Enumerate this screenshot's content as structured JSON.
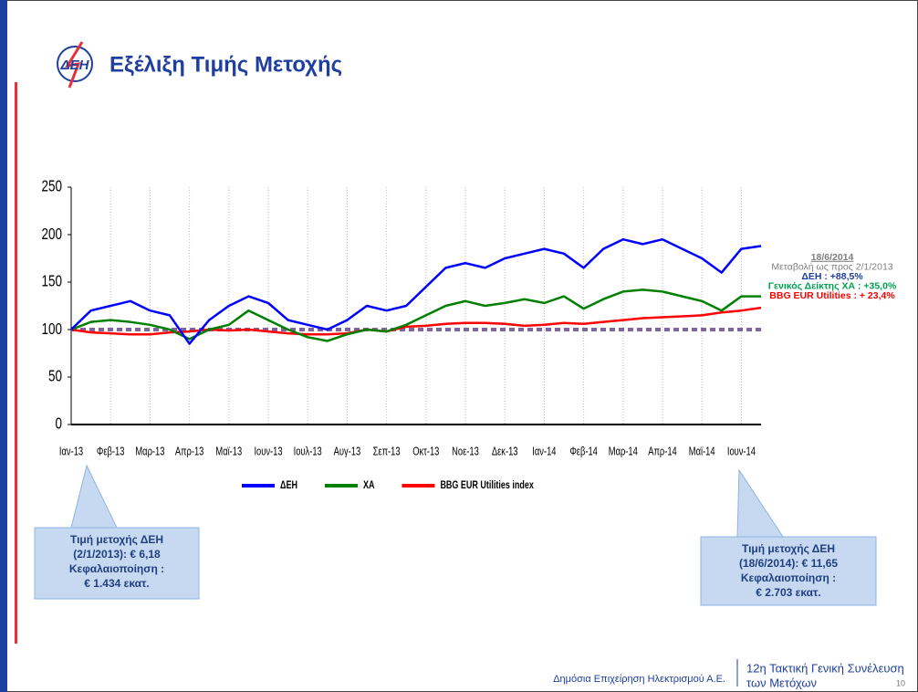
{
  "title": "Εξέλιξη Τιμής Μετοχής",
  "logo_text": "ΔΕΗ",
  "chart_data": {
    "type": "line",
    "categories": [
      "Ιαν-13",
      null,
      "Φεβ-13",
      null,
      "Μαρ-13",
      null,
      "Απρ-13",
      null,
      "Μαϊ-13",
      null,
      "Ιουν-13",
      null,
      "Ιουλ-13",
      null,
      "Αυγ-13",
      null,
      "Σεπ-13",
      null,
      "Οκτ-13",
      null,
      "Νοε-13",
      null,
      "Δεκ-13",
      null,
      "Ιαν-14",
      null,
      "Φεβ-14",
      null,
      "Μαρ-14",
      null,
      "Απρ-14",
      null,
      "Μαϊ-14",
      null,
      "Ιουν-14",
      null
    ],
    "series": [
      {
        "name": "ΔΕΗ",
        "color": "#0000ff",
        "values": [
          100,
          120,
          125,
          130,
          120,
          115,
          85,
          110,
          125,
          135,
          128,
          110,
          105,
          100,
          110,
          125,
          120,
          125,
          145,
          165,
          170,
          165,
          175,
          180,
          185,
          180,
          165,
          185,
          195,
          190,
          195,
          185,
          175,
          160,
          185,
          188
        ]
      },
      {
        "name": "ΧΑ",
        "color": "#008000",
        "values": [
          100,
          108,
          110,
          108,
          105,
          100,
          90,
          100,
          105,
          120,
          110,
          100,
          92,
          88,
          95,
          100,
          98,
          105,
          115,
          125,
          130,
          125,
          128,
          132,
          128,
          135,
          122,
          132,
          140,
          142,
          140,
          135,
          130,
          120,
          135,
          135
        ]
      },
      {
        "name": "BBG EUR Utilities index",
        "color": "#ff0000",
        "values": [
          100,
          97,
          96,
          95,
          95,
          97,
          98,
          100,
          99,
          100,
          98,
          96,
          95,
          95,
          96,
          100,
          98,
          103,
          104,
          106,
          107,
          107,
          106,
          104,
          105,
          107,
          106,
          108,
          110,
          112,
          113,
          114,
          115,
          118,
          120,
          123
        ]
      }
    ],
    "baseline": {
      "value": 100,
      "color": "#8064a2"
    },
    "ylim": [
      0,
      250
    ],
    "yticks": [
      0,
      50,
      100,
      150,
      200,
      250
    ],
    "grid": true,
    "annotations": [
      {
        "text": "18/6/2014",
        "color": "#7f7f7f"
      },
      {
        "text": "Μεταβολή ως προς 2/1/2013",
        "color": "#7f7f7f"
      },
      {
        "text": "ΔΕΗ : +88,5%",
        "color": "#1f3f9f"
      },
      {
        "text": "Γενικός Δείκτης ΧΑ : +35,0%",
        "color": "#00a050"
      },
      {
        "text": "BBG EUR Utilities : + 23,4%",
        "color": "#ff0000"
      }
    ]
  },
  "callouts": [
    {
      "lines": [
        "Τιμή μετοχής ΔΕΗ",
        "(2/1/2013): € 6,18",
        "Κεφαλαιοποίηση :",
        "€  1.434  εκατ."
      ]
    },
    {
      "lines": [
        "Τιμή μετοχής ΔΕΗ",
        "(18/6/2014): € 11,65",
        "Κεφαλαιοποίηση :",
        "€ 2.703 εκατ."
      ]
    }
  ],
  "footer": {
    "company": "Δημόσια Επιχείρηση Ηλεκτρισμού Α.Ε.",
    "meeting_1": "12η Τακτική Γενική Συνέλευση",
    "meeting_2": "των Μετόχων",
    "page": "10"
  }
}
